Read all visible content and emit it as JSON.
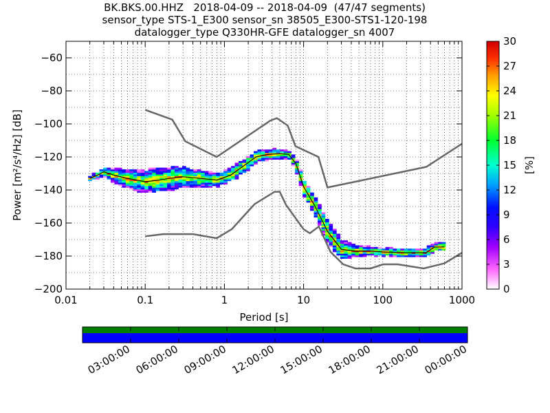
{
  "header": {
    "line1": "BK.BKS.00.HHZ   2018-04-09 -- 2018-04-09  (47/47 segments)",
    "line2": "sensor_type STS-1_E300 sensor_sn 38505_E300-STS1-120-198",
    "line3": "datalogger_type Q330HR-GFE datalogger_sn 4007"
  },
  "chart_data": {
    "type": "heatmap",
    "title": "BK.BKS.00.HHZ   2018-04-09 -- 2018-04-09  (47/47 segments)",
    "xlabel": "Period [s]",
    "ylabel": "Power [m²/s⁴/Hz] [dB]",
    "x_scale": "log",
    "xlim": [
      0.01,
      1000
    ],
    "ylim": [
      -200,
      -50
    ],
    "x_ticks": [
      "0.01",
      "0.1",
      "1",
      "10",
      "100",
      "1000"
    ],
    "x_tick_values": [
      0.01,
      0.1,
      1,
      10,
      100,
      1000
    ],
    "y_ticks": [
      "−60",
      "−80",
      "−100",
      "−120",
      "−140",
      "−160",
      "−180",
      "−200"
    ],
    "y_tick_values": [
      -60,
      -80,
      -100,
      -120,
      -140,
      -160,
      -180,
      -200
    ],
    "grid": true,
    "colorbar": {
      "label": "[%]",
      "range": [
        0,
        30
      ],
      "ticks": [
        "0",
        "3",
        "6",
        "9",
        "12",
        "15",
        "18",
        "21",
        "24",
        "27",
        "30"
      ],
      "tick_values": [
        0,
        3,
        6,
        9,
        12,
        15,
        18,
        21,
        24,
        27,
        30
      ]
    },
    "noise_models": [
      {
        "name": "NHNM",
        "x": [
          0.1,
          0.22,
          0.32,
          0.8,
          3.8,
          4.6,
          6.3,
          7.9,
          15.4,
          20,
          354.8,
          1000
        ],
        "y": [
          -91.5,
          -97.4,
          -110.5,
          -120,
          -98,
          -96.5,
          -101,
          -113.5,
          -120,
          -138.5,
          -126,
          -112
        ]
      },
      {
        "name": "NLNM",
        "x": [
          0.1,
          0.17,
          0.4,
          0.8,
          1.24,
          2.4,
          4.3,
          5,
          6,
          10,
          12,
          15.6,
          21.9,
          31.6,
          45,
          70,
          101,
          154,
          328,
          600,
          1000
        ],
        "y": [
          -168,
          -166.7,
          -166.7,
          -169.2,
          -163.7,
          -148.6,
          -141.1,
          -141.1,
          -149,
          -163.8,
          -166.2,
          -162.1,
          -177.5,
          -185,
          -187.5,
          -187.5,
          -185,
          -185,
          -187.5,
          -184.4,
          -178
        ]
      }
    ],
    "median": {
      "x": [
        0.02,
        0.025,
        0.03,
        0.04,
        0.06,
        0.1,
        0.15,
        0.2,
        0.3,
        0.5,
        0.8,
        1.2,
        1.8,
        2.5,
        3.5,
        5,
        6.5,
        8,
        10,
        14,
        20,
        30,
        45,
        70,
        100,
        200,
        350,
        450,
        600
      ],
      "y": [
        -133,
        -131,
        -129,
        -131,
        -133,
        -135,
        -134,
        -133,
        -132,
        -133,
        -134,
        -131,
        -125,
        -120,
        -118.5,
        -118,
        -118.5,
        -124,
        -138,
        -150,
        -165,
        -176,
        -177,
        -177,
        -177.5,
        -178,
        -178,
        -174.5,
        -174.5
      ]
    },
    "band_upper": [
      -131,
      -129,
      -126,
      -126,
      -127,
      -126,
      -124,
      -124,
      -126,
      -128,
      -129,
      -126,
      -119,
      -116,
      -115,
      -115,
      -116,
      -120,
      -132,
      -144,
      -157,
      -168,
      -173,
      -174,
      -174.5,
      -175,
      -175.5,
      -169,
      -169
    ],
    "band_lower": [
      -135,
      -133,
      -132,
      -135,
      -139,
      -141,
      -140,
      -140,
      -139,
      -139,
      -138,
      -135,
      -129,
      -124,
      -122,
      -121,
      -122,
      -128,
      -143,
      -157,
      -172,
      -181,
      -181,
      -180,
      -180,
      -180.5,
      -181,
      -176,
      -176
    ],
    "timeline": {
      "labels": [
        "03:00:00",
        "06:00:00",
        "09:00:00",
        "12:00:00",
        "15:00:00",
        "18:00:00",
        "21:00:00",
        "00:00:00"
      ],
      "data_availability_color": "#007f00",
      "gap_free_color": "#0000ff"
    }
  }
}
